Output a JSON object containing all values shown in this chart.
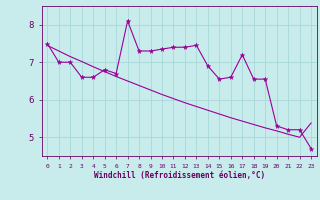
{
  "x": [
    0,
    1,
    2,
    3,
    4,
    5,
    6,
    7,
    8,
    9,
    10,
    11,
    12,
    13,
    14,
    15,
    16,
    17,
    18,
    19,
    20,
    21,
    22,
    23
  ],
  "y_line": [
    7.5,
    7.0,
    7.0,
    6.6,
    6.6,
    6.8,
    6.7,
    8.1,
    7.3,
    7.3,
    7.35,
    7.4,
    7.4,
    7.45,
    6.9,
    6.55,
    6.6,
    7.2,
    6.55,
    6.55,
    5.3,
    5.2,
    5.2,
    4.7
  ],
  "y_trend": [
    7.45,
    7.3,
    7.15,
    7.02,
    6.88,
    6.75,
    6.62,
    6.5,
    6.38,
    6.26,
    6.14,
    6.03,
    5.92,
    5.82,
    5.72,
    5.62,
    5.52,
    5.43,
    5.34,
    5.25,
    5.17,
    5.08,
    5.0,
    5.38
  ],
  "line_color": "#990099",
  "bg_color": "#c8ecec",
  "grid_color": "#a8d8d8",
  "axis_color": "#660066",
  "xlabel": "Windchill (Refroidissement éolien,°C)",
  "ylim": [
    4.5,
    8.5
  ],
  "xlim": [
    -0.5,
    23.5
  ],
  "yticks": [
    5,
    6,
    7,
    8
  ],
  "xticks": [
    0,
    1,
    2,
    3,
    4,
    5,
    6,
    7,
    8,
    9,
    10,
    11,
    12,
    13,
    14,
    15,
    16,
    17,
    18,
    19,
    20,
    21,
    22,
    23
  ]
}
